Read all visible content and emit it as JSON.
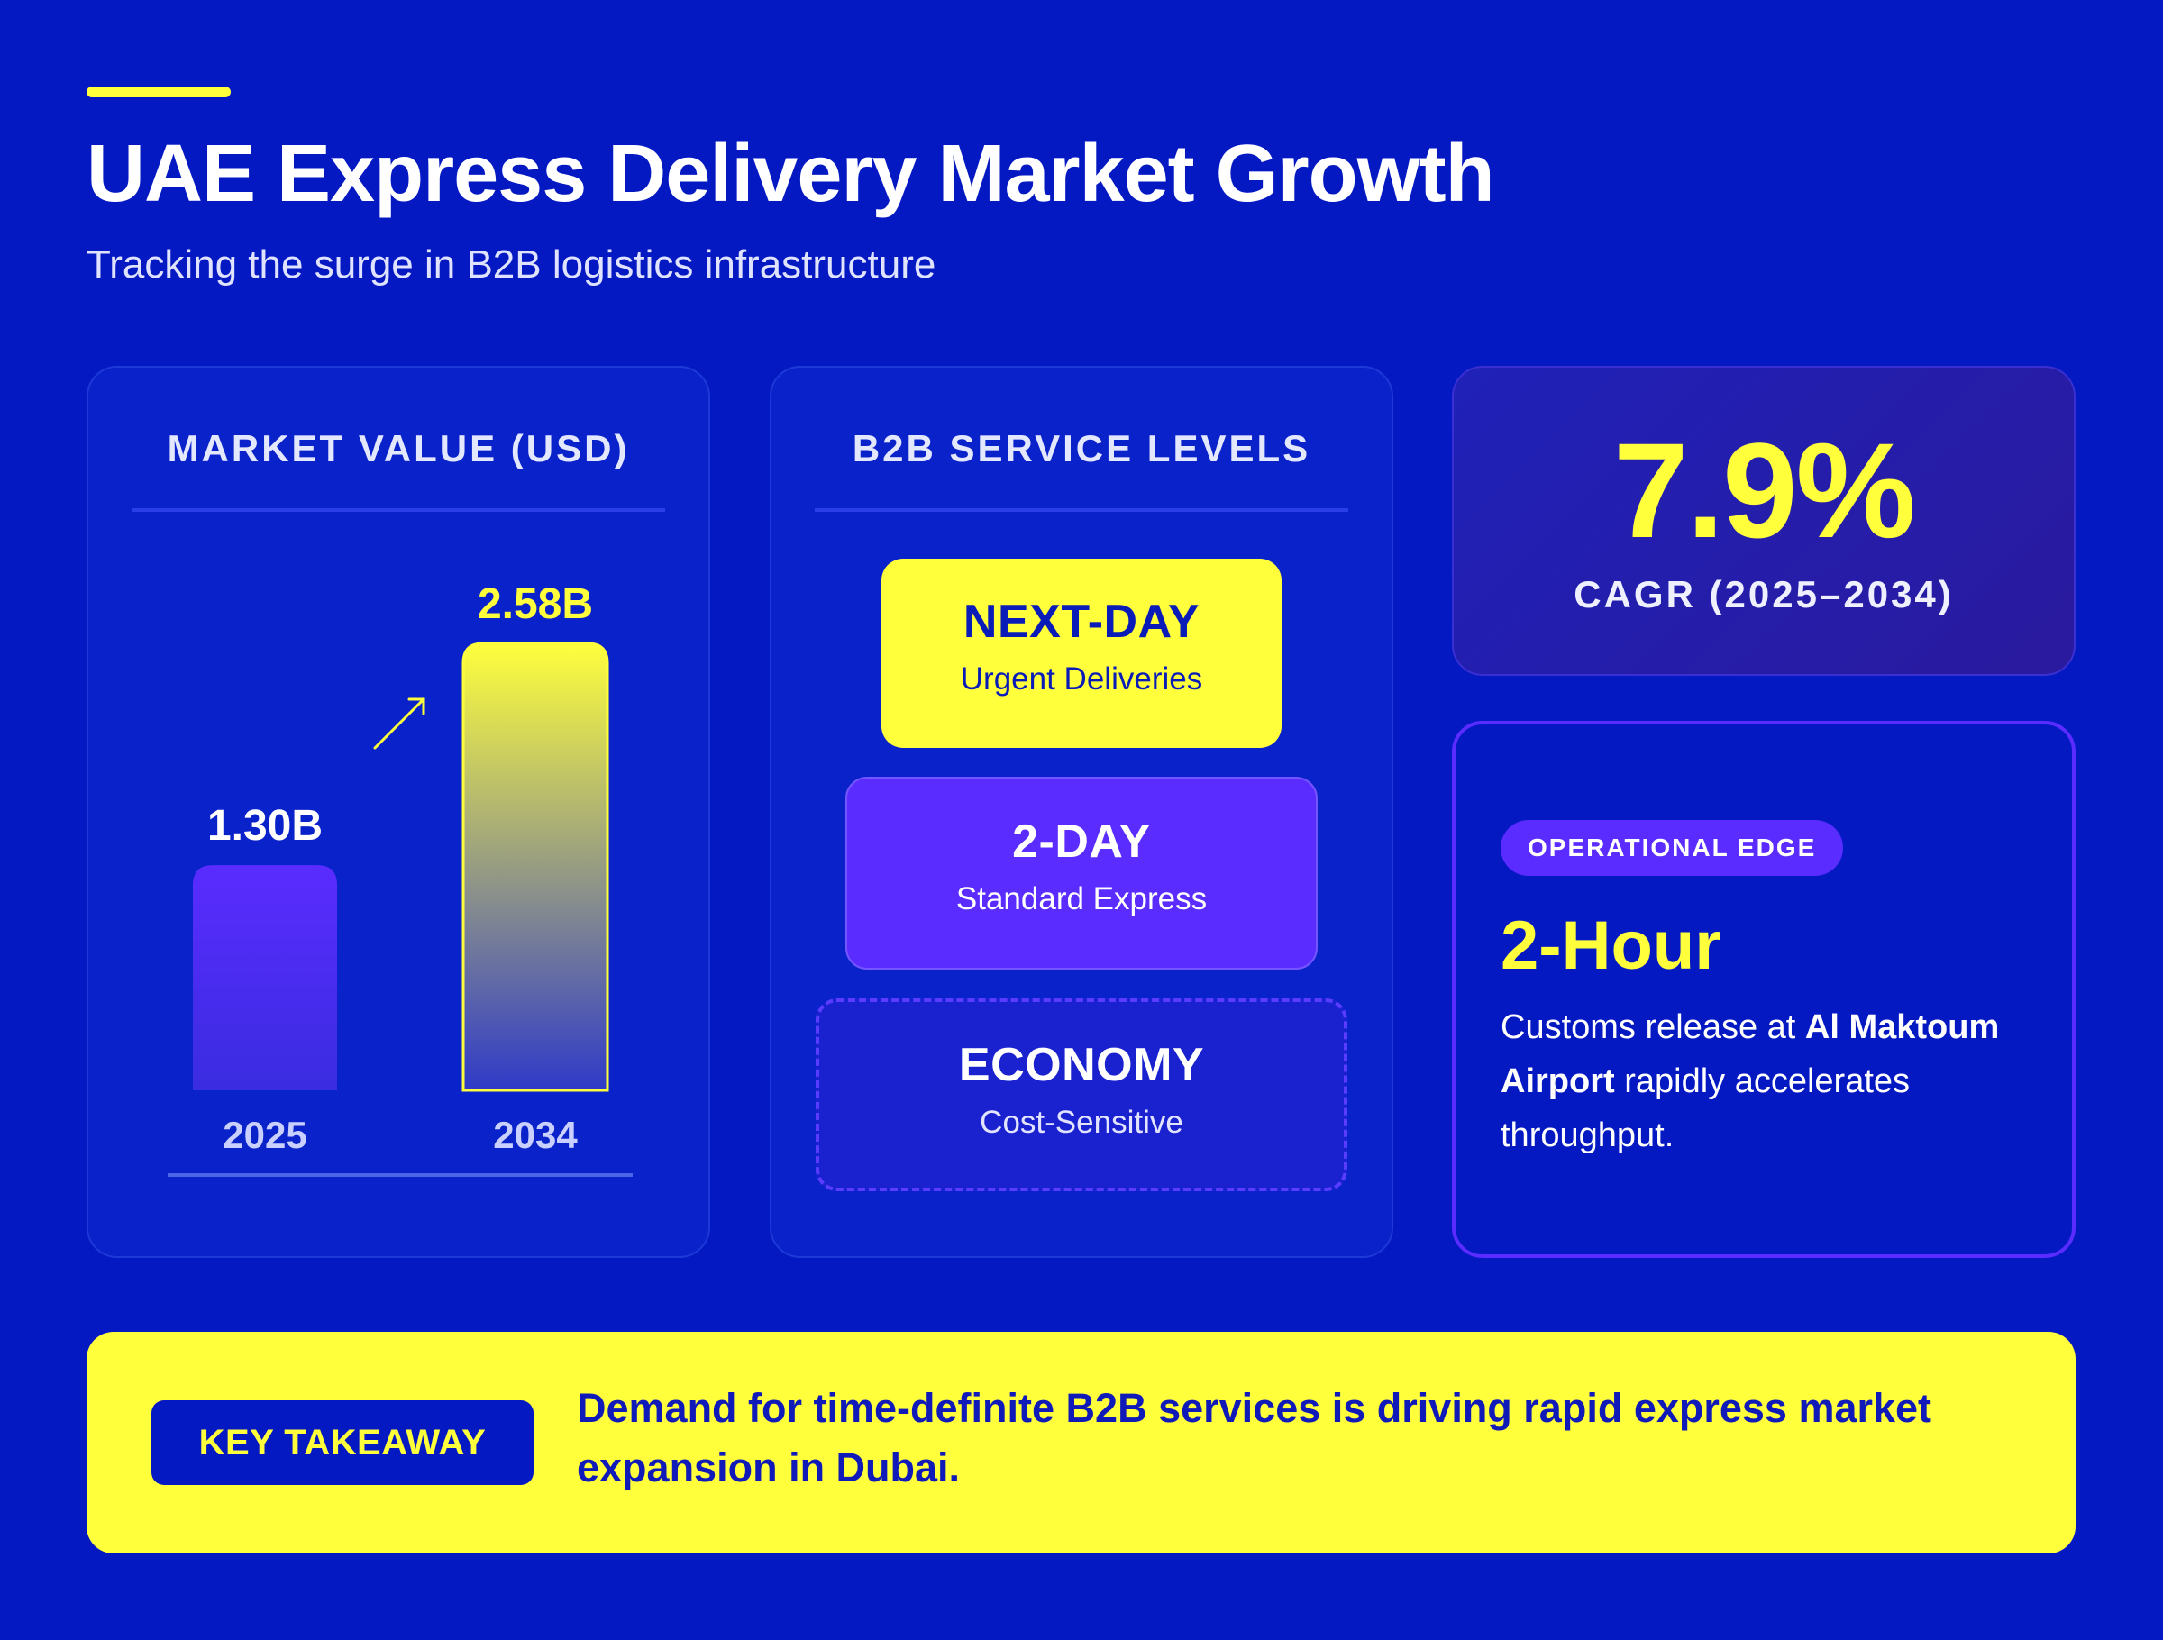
{
  "header": {
    "title": "UAE Express Delivery Market Growth",
    "subtitle": "Tracking the surge in B2B logistics infrastructure"
  },
  "market_card": {
    "heading": "MARKET VALUE (USD)"
  },
  "levels_card": {
    "heading": "B2B SERVICE LEVELS",
    "tiers": [
      {
        "name": "NEXT-DAY",
        "desc": "Urgent Deliveries"
      },
      {
        "name": "2-DAY",
        "desc": "Standard Express"
      },
      {
        "name": "ECONOMY",
        "desc": "Cost-Sensitive"
      }
    ]
  },
  "cagr_card": {
    "value": "7.9%",
    "label": "CAGR (2025–2034)"
  },
  "edge_card": {
    "badge": "OPERATIONAL EDGE",
    "value": "2-Hour",
    "text_before": "Customs release at ",
    "text_bold": "Al Maktoum Airport",
    "text_after": " rapidly accelerates throughput."
  },
  "takeaway": {
    "badge": "KEY TAKEAWAY",
    "text": "Demand for time-definite B2B services is driving rapid express market expansion in Dubai."
  },
  "chart_data": {
    "type": "bar",
    "title": "MARKET VALUE (USD)",
    "categories": [
      "2025",
      "2034"
    ],
    "values": [
      1.3,
      2.58
    ],
    "value_labels": [
      "1.30B",
      "2.58B"
    ],
    "unit": "B",
    "ylim": [
      0,
      2.58
    ],
    "colors": [
      "#5a2cff",
      "#ffff3c"
    ],
    "grid": false,
    "legend": "none",
    "annotation": "up-right-arrow-icon"
  },
  "colors": {
    "background": "#0519c2",
    "accent_yellow": "#ffff3c",
    "accent_purple": "#5a2cff",
    "card": "#0a22c9"
  }
}
